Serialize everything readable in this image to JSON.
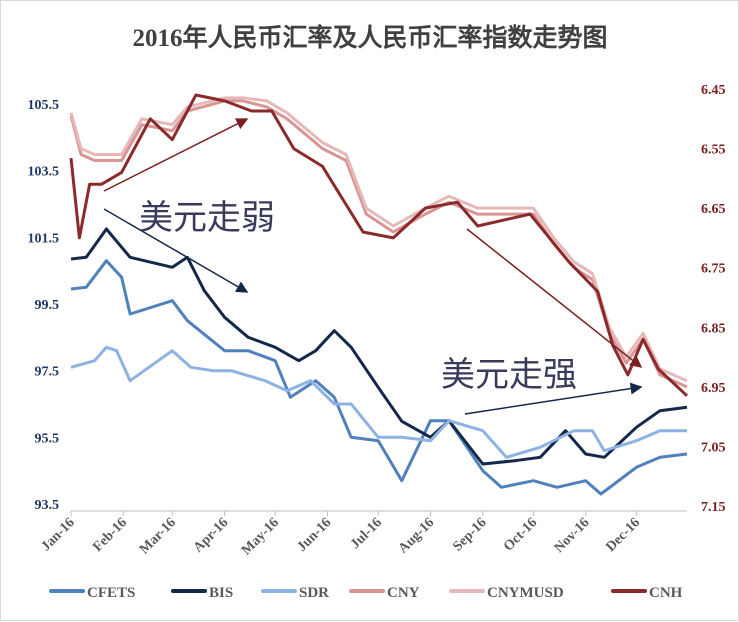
{
  "chart_data": {
    "type": "line",
    "title": "2016年人民币汇率及人民币汇率指数走势图",
    "x_tick_labels": [
      "Jan-16",
      "Feb-16",
      "Mar-16",
      "Apr-16",
      "May-16",
      "Jun-16",
      "Jul-16",
      "Aug-16",
      "Sep-16",
      "Oct-16",
      "Nov-16",
      "Dec-16"
    ],
    "left_axis": {
      "ylim": [
        93.5,
        105.5
      ],
      "ticks": [
        "105.5",
        "103.5",
        "101.5",
        "99.5",
        "97.5",
        "95.5",
        "93.5"
      ],
      "color": "#1f3864"
    },
    "right_axis": {
      "ylim": [
        6.45,
        7.15
      ],
      "inverted": true,
      "ticks": [
        "6.45",
        "6.55",
        "6.65",
        "6.75",
        "6.85",
        "6.95",
        "7.05",
        "7.15"
      ],
      "color": "#7b2020"
    },
    "grid": false,
    "legend_position": "bottom",
    "annotations": [
      "美元走弱",
      "美元走强"
    ],
    "series": [
      {
        "name": "CFETS",
        "axis": "left",
        "color": "#4f81bd",
        "x": [
          "2016-01-01",
          "2016-01-10",
          "2016-01-22",
          "2016-01-31",
          "2016-02-05",
          "2016-03-01",
          "2016-03-10",
          "2016-04-01",
          "2016-04-15",
          "2016-05-01",
          "2016-05-10",
          "2016-05-25",
          "2016-06-05",
          "2016-06-15",
          "2016-07-01",
          "2016-07-15",
          "2016-08-01",
          "2016-08-12",
          "2016-09-01",
          "2016-09-12",
          "2016-10-01",
          "2016-10-15",
          "2016-11-01",
          "2016-11-10",
          "2016-12-01",
          "2016-12-15",
          "2016-12-31"
        ],
        "y": [
          99.95,
          100.0,
          100.8,
          100.3,
          99.2,
          99.6,
          99.0,
          98.1,
          98.1,
          97.8,
          96.7,
          97.2,
          96.7,
          95.5,
          95.4,
          94.2,
          96.0,
          96.0,
          94.5,
          94.0,
          94.2,
          94.0,
          94.2,
          93.8,
          94.6,
          94.9,
          95.0
        ]
      },
      {
        "name": "BIS",
        "axis": "left",
        "color": "#13284a",
        "x": [
          "2016-01-01",
          "2016-01-10",
          "2016-01-22",
          "2016-02-05",
          "2016-03-01",
          "2016-03-10",
          "2016-03-20",
          "2016-04-01",
          "2016-04-15",
          "2016-05-01",
          "2016-05-15",
          "2016-05-25",
          "2016-06-05",
          "2016-06-15",
          "2016-07-01",
          "2016-07-15",
          "2016-08-01",
          "2016-08-12",
          "2016-09-01",
          "2016-09-20",
          "2016-10-05",
          "2016-10-20",
          "2016-11-01",
          "2016-11-12",
          "2016-12-01",
          "2016-12-15",
          "2016-12-31"
        ],
        "y": [
          100.85,
          100.9,
          101.75,
          100.9,
          100.6,
          100.9,
          99.9,
          99.1,
          98.5,
          98.2,
          97.8,
          98.1,
          98.7,
          98.2,
          97.0,
          95.98,
          95.5,
          96.0,
          94.7,
          94.8,
          94.9,
          95.7,
          95.0,
          94.9,
          95.8,
          96.3,
          96.4
        ]
      },
      {
        "name": "SDR",
        "axis": "left",
        "color": "#8db3e2",
        "x": [
          "2016-01-01",
          "2016-01-15",
          "2016-01-22",
          "2016-01-28",
          "2016-02-05",
          "2016-03-01",
          "2016-03-12",
          "2016-03-25",
          "2016-04-05",
          "2016-04-25",
          "2016-05-08",
          "2016-05-22",
          "2016-06-05",
          "2016-06-15",
          "2016-07-01",
          "2016-07-15",
          "2016-08-01",
          "2016-08-12",
          "2016-09-01",
          "2016-09-15",
          "2016-10-05",
          "2016-10-25",
          "2016-11-05",
          "2016-11-12",
          "2016-12-01",
          "2016-12-15",
          "2016-12-31"
        ],
        "y": [
          97.6,
          97.8,
          98.2,
          98.1,
          97.2,
          98.1,
          97.6,
          97.5,
          97.5,
          97.2,
          96.9,
          97.2,
          96.5,
          96.5,
          95.5,
          95.5,
          95.4,
          96.0,
          95.7,
          94.9,
          95.2,
          95.7,
          95.7,
          95.1,
          95.4,
          95.7,
          95.7
        ]
      },
      {
        "name": "CNY",
        "axis": "right",
        "color": "#d99594",
        "x": [
          "2016-01-01",
          "2016-01-07",
          "2016-01-15",
          "2016-01-31",
          "2016-02-12",
          "2016-03-01",
          "2016-03-10",
          "2016-04-01",
          "2016-04-12",
          "2016-04-26",
          "2016-05-08",
          "2016-05-29",
          "2016-06-12",
          "2016-06-24",
          "2016-07-10",
          "2016-07-29",
          "2016-08-12",
          "2016-08-29",
          "2016-09-15",
          "2016-10-01",
          "2016-10-13",
          "2016-10-25",
          "2016-11-05",
          "2016-11-15",
          "2016-11-25",
          "2016-12-05",
          "2016-12-15",
          "2016-12-31"
        ],
        "y": [
          6.495,
          6.56,
          6.57,
          6.57,
          6.51,
          6.52,
          6.487,
          6.47,
          6.47,
          6.48,
          6.5,
          6.55,
          6.57,
          6.66,
          6.69,
          6.66,
          6.64,
          6.66,
          6.66,
          6.66,
          6.71,
          6.75,
          6.77,
          6.86,
          6.91,
          6.87,
          6.93,
          6.95
        ]
      },
      {
        "name": "CNYMUSD",
        "axis": "right",
        "color": "#e6b9b8",
        "x": [
          "2016-01-01",
          "2016-01-07",
          "2016-01-15",
          "2016-01-31",
          "2016-02-12",
          "2016-03-01",
          "2016-03-10",
          "2016-04-01",
          "2016-04-12",
          "2016-04-26",
          "2016-05-08",
          "2016-05-29",
          "2016-06-12",
          "2016-06-24",
          "2016-07-10",
          "2016-07-29",
          "2016-08-12",
          "2016-08-29",
          "2016-09-15",
          "2016-10-01",
          "2016-10-13",
          "2016-10-25",
          "2016-11-05",
          "2016-11-15",
          "2016-11-25",
          "2016-12-05",
          "2016-12-15",
          "2016-12-31"
        ],
        "y": [
          6.49,
          6.55,
          6.56,
          6.56,
          6.5,
          6.51,
          6.48,
          6.465,
          6.465,
          6.47,
          6.49,
          6.54,
          6.56,
          6.65,
          6.68,
          6.65,
          6.63,
          6.65,
          6.65,
          6.65,
          6.7,
          6.74,
          6.76,
          6.85,
          6.9,
          6.86,
          6.92,
          6.94
        ]
      },
      {
        "name": "CNH",
        "axis": "right",
        "color": "#8b2a2a",
        "x": [
          "2016-01-01",
          "2016-01-06",
          "2016-01-12",
          "2016-01-19",
          "2016-01-31",
          "2016-02-17",
          "2016-03-01",
          "2016-03-15",
          "2016-04-01",
          "2016-04-17",
          "2016-04-29",
          "2016-05-12",
          "2016-05-29",
          "2016-06-22",
          "2016-07-10",
          "2016-07-29",
          "2016-08-17",
          "2016-08-29",
          "2016-09-29",
          "2016-10-22",
          "2016-11-08",
          "2016-11-17",
          "2016-11-26",
          "2016-12-05",
          "2016-12-14",
          "2016-12-31"
        ],
        "y": [
          6.566,
          6.7,
          6.61,
          6.61,
          6.59,
          6.5,
          6.535,
          6.46,
          6.47,
          6.487,
          6.487,
          6.55,
          6.58,
          6.69,
          6.7,
          6.65,
          6.64,
          6.68,
          6.66,
          6.74,
          6.79,
          6.88,
          6.93,
          6.87,
          6.92,
          6.965
        ]
      }
    ]
  }
}
